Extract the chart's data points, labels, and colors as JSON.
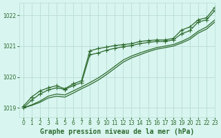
{
  "background_color": "#d8f5f0",
  "grid_color": "#b8ddd4",
  "line_color": "#2d6a2d",
  "marker_color": "#2d6a2d",
  "title": "Graphe pression niveau de la mer (hPa)",
  "title_color": "#2d6a2d",
  "xlim": [
    -0.5,
    23
  ],
  "ylim": [
    1018.7,
    1022.4
  ],
  "yticks": [
    1019,
    1020,
    1021,
    1022
  ],
  "xticks": [
    0,
    1,
    2,
    3,
    4,
    5,
    6,
    7,
    8,
    9,
    10,
    11,
    12,
    13,
    14,
    15,
    16,
    17,
    18,
    19,
    20,
    21,
    22,
    23
  ],
  "series": [
    {
      "y": [
        1019.05,
        1019.35,
        1019.55,
        1019.65,
        1019.72,
        1019.62,
        1019.78,
        1019.88,
        1020.85,
        1020.92,
        1020.97,
        1021.02,
        1021.05,
        1021.08,
        1021.15,
        1021.18,
        1021.2,
        1021.2,
        1021.25,
        1021.52,
        1021.62,
        1021.85,
        1021.92,
        1022.25
      ],
      "marker": true,
      "lw": 0.9
    },
    {
      "y": [
        1019.0,
        1019.25,
        1019.45,
        1019.58,
        1019.65,
        1019.6,
        1019.72,
        1019.82,
        1020.72,
        1020.78,
        1020.87,
        1020.93,
        1020.98,
        1021.02,
        1021.08,
        1021.12,
        1021.15,
        1021.15,
        1021.2,
        1021.4,
        1021.5,
        1021.78,
        1021.85,
        1022.15
      ],
      "marker": true,
      "lw": 0.9
    },
    {
      "y": [
        1019.0,
        1019.1,
        1019.22,
        1019.38,
        1019.45,
        1019.42,
        1019.55,
        1019.68,
        1019.82,
        1019.97,
        1020.15,
        1020.35,
        1020.55,
        1020.68,
        1020.78,
        1020.87,
        1020.95,
        1021.0,
        1021.05,
        1021.15,
        1021.28,
        1021.48,
        1021.62,
        1021.85
      ],
      "marker": false,
      "lw": 0.9
    },
    {
      "y": [
        1019.0,
        1019.08,
        1019.18,
        1019.32,
        1019.38,
        1019.35,
        1019.48,
        1019.62,
        1019.75,
        1019.9,
        1020.08,
        1020.28,
        1020.48,
        1020.62,
        1020.72,
        1020.82,
        1020.9,
        1020.95,
        1021.0,
        1021.1,
        1021.22,
        1021.42,
        1021.55,
        1021.78
      ],
      "marker": false,
      "lw": 0.9
    }
  ],
  "marker_size": 4,
  "tick_fontsize": 5.5,
  "xlabel_fontsize": 7
}
